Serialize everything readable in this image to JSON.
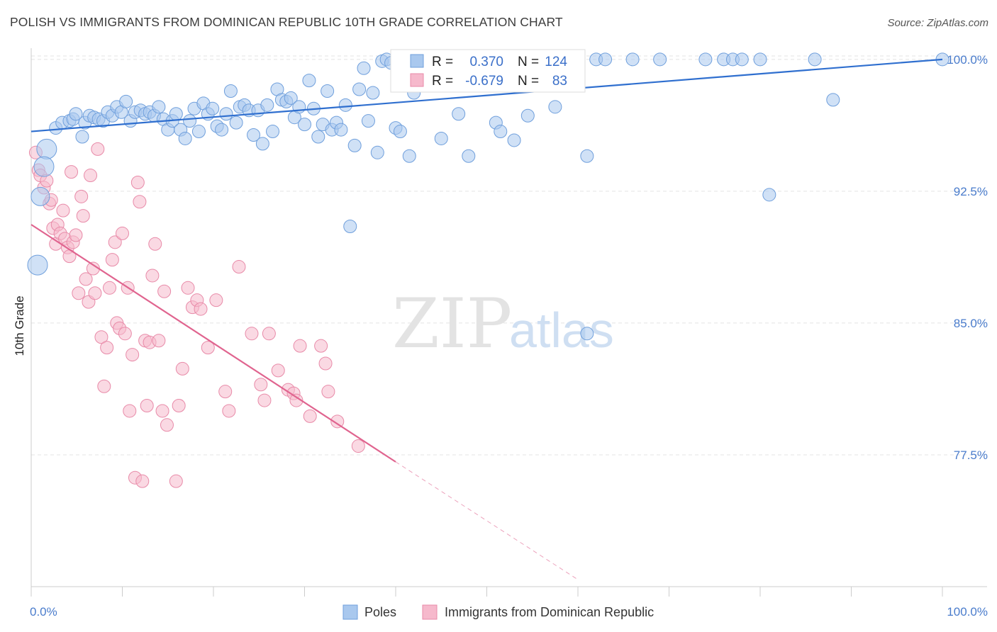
{
  "title": "POLISH VS IMMIGRANTS FROM DOMINICAN REPUBLIC 10TH GRADE CORRELATION CHART",
  "source": "Source: ZipAtlas.com",
  "watermark": {
    "part1": "ZIP",
    "part2": "atlas"
  },
  "stats_box": {
    "r_label": "R =",
    "n_label": "N =",
    "rows": [
      {
        "r": "0.370",
        "n": "124"
      },
      {
        "r": "-0.679",
        "n": "83"
      }
    ]
  },
  "colors": {
    "poles_fill": "#a9c8ee",
    "poles_stroke": "#6f9fdc",
    "poles_line": "#2f6fcf",
    "dom_fill": "#f6b9cc",
    "dom_stroke": "#e88aa8",
    "dom_line": "#e0648f",
    "grid": "#e3e3e3",
    "axis_text": "#4a7ccc"
  },
  "chart_data": {
    "type": "scatter",
    "ylabel": "10th Grade",
    "xlabel": "",
    "xlim": [
      0,
      100
    ],
    "ylim": [
      70.0,
      100.8
    ],
    "x_tick_labels": [
      "0.0%",
      "100.0%"
    ],
    "y_ticks": [
      77.5,
      85.0,
      92.5,
      100.0
    ],
    "y_tick_labels": [
      "77.5%",
      "85.0%",
      "92.5%",
      "100.0%"
    ],
    "grid": true,
    "legend_position": "bottom-center",
    "series": [
      {
        "name": "Poles",
        "r": 0.37,
        "n": 124,
        "trend": {
          "x": [
            0,
            100
          ],
          "y": [
            95.9,
            100.0
          ]
        },
        "points": [
          [
            0.7,
            88.3
          ],
          [
            1.7,
            94.9
          ],
          [
            1.0,
            92.2
          ],
          [
            1.4,
            93.9
          ],
          [
            2.7,
            96.1
          ],
          [
            3.4,
            96.4
          ],
          [
            4.2,
            96.5
          ],
          [
            4.6,
            96.6
          ],
          [
            4.9,
            96.9
          ],
          [
            5.6,
            95.6
          ],
          [
            5.9,
            96.4
          ],
          [
            6.4,
            96.8
          ],
          [
            6.9,
            96.7
          ],
          [
            7.4,
            96.6
          ],
          [
            7.9,
            96.5
          ],
          [
            8.4,
            97.0
          ],
          [
            8.9,
            96.8
          ],
          [
            9.4,
            97.3
          ],
          [
            9.9,
            97.0
          ],
          [
            10.4,
            97.6
          ],
          [
            10.9,
            96.5
          ],
          [
            11.4,
            97.0
          ],
          [
            12.0,
            97.1
          ],
          [
            12.5,
            96.9
          ],
          [
            13.0,
            97.0
          ],
          [
            13.5,
            96.8
          ],
          [
            14.0,
            97.3
          ],
          [
            14.5,
            96.6
          ],
          [
            15.0,
            96.0
          ],
          [
            15.5,
            96.5
          ],
          [
            15.9,
            96.9
          ],
          [
            16.4,
            96.0
          ],
          [
            16.9,
            95.5
          ],
          [
            17.4,
            96.5
          ],
          [
            17.9,
            97.2
          ],
          [
            18.4,
            95.9
          ],
          [
            18.9,
            97.5
          ],
          [
            19.4,
            96.9
          ],
          [
            19.9,
            97.2
          ],
          [
            20.4,
            96.2
          ],
          [
            20.9,
            96.0
          ],
          [
            21.4,
            96.9
          ],
          [
            21.9,
            98.2
          ],
          [
            22.5,
            96.4
          ],
          [
            22.9,
            97.3
          ],
          [
            23.4,
            97.4
          ],
          [
            23.9,
            97.1
          ],
          [
            24.4,
            95.7
          ],
          [
            24.9,
            97.1
          ],
          [
            25.4,
            95.2
          ],
          [
            25.9,
            97.4
          ],
          [
            26.5,
            95.9
          ],
          [
            27.0,
            98.3
          ],
          [
            27.5,
            97.7
          ],
          [
            28.0,
            97.6
          ],
          [
            28.5,
            97.8
          ],
          [
            28.9,
            96.7
          ],
          [
            29.4,
            97.3
          ],
          [
            30.0,
            96.3
          ],
          [
            30.5,
            98.8
          ],
          [
            31.0,
            97.2
          ],
          [
            31.5,
            95.6
          ],
          [
            32.0,
            96.3
          ],
          [
            32.5,
            98.2
          ],
          [
            33.0,
            96.0
          ],
          [
            33.5,
            96.4
          ],
          [
            34.0,
            96.0
          ],
          [
            34.5,
            97.4
          ],
          [
            35.5,
            95.1
          ],
          [
            36.0,
            98.3
          ],
          [
            36.5,
            99.5
          ],
          [
            37.0,
            96.5
          ],
          [
            37.5,
            98.1
          ],
          [
            38.0,
            94.7
          ],
          [
            38.5,
            99.9
          ],
          [
            39.0,
            100.0
          ],
          [
            39.5,
            99.8
          ],
          [
            40.0,
            96.1
          ],
          [
            40.5,
            95.9
          ],
          [
            41.0,
            99.9
          ],
          [
            41.5,
            94.5
          ],
          [
            42.0,
            98.1
          ],
          [
            43.0,
            100.0
          ],
          [
            44.0,
            100.0
          ],
          [
            45.0,
            95.5
          ],
          [
            46.0,
            100.0
          ],
          [
            46.9,
            96.9
          ],
          [
            47.5,
            100.0
          ],
          [
            48.0,
            94.5
          ],
          [
            49.0,
            100.0
          ],
          [
            50.0,
            100.0
          ],
          [
            51.0,
            96.4
          ],
          [
            51.5,
            95.9
          ],
          [
            52.0,
            100.0
          ],
          [
            53.0,
            95.4
          ],
          [
            54.0,
            100.0
          ],
          [
            54.5,
            96.8
          ],
          [
            55.0,
            100.0
          ],
          [
            56.0,
            100.0
          ],
          [
            57.0,
            100.0
          ],
          [
            57.5,
            97.3
          ],
          [
            59.0,
            100.0
          ],
          [
            61.0,
            94.5
          ],
          [
            62.0,
            100.0
          ],
          [
            63.0,
            100.0
          ],
          [
            66.0,
            100.0
          ],
          [
            69.0,
            100.0
          ],
          [
            74.0,
            100.0
          ],
          [
            76.0,
            100.0
          ],
          [
            77.0,
            100.0
          ],
          [
            78.0,
            100.0
          ],
          [
            80.0,
            100.0
          ],
          [
            81.0,
            92.3
          ],
          [
            86.0,
            100.0
          ],
          [
            88.0,
            97.7
          ],
          [
            100.0,
            100.0
          ],
          [
            61.0,
            84.4
          ],
          [
            35.0,
            90.5
          ]
        ],
        "point_sizes": [
          [
            0.7,
            88.3,
            14
          ],
          [
            1.7,
            94.9,
            14
          ],
          [
            1.4,
            93.9,
            14
          ],
          [
            1.0,
            92.2,
            13
          ]
        ]
      },
      {
        "name": "Immigrants from Dominican Republic",
        "r": -0.679,
        "n": 83,
        "trend": {
          "x": [
            0,
            40
          ],
          "y": [
            90.6,
            77.1
          ]
        },
        "trend_dashed": {
          "x": [
            40,
            60
          ],
          "y": [
            77.1,
            70.4
          ]
        },
        "points": [
          [
            0.5,
            94.7
          ],
          [
            0.8,
            93.7
          ],
          [
            1.0,
            93.4
          ],
          [
            1.4,
            92.7
          ],
          [
            1.7,
            93.1
          ],
          [
            2.0,
            91.8
          ],
          [
            2.2,
            92.0
          ],
          [
            2.4,
            90.4
          ],
          [
            2.7,
            89.5
          ],
          [
            2.9,
            90.6
          ],
          [
            3.2,
            90.1
          ],
          [
            3.5,
            91.4
          ],
          [
            3.7,
            89.8
          ],
          [
            4.0,
            89.3
          ],
          [
            4.2,
            88.8
          ],
          [
            4.4,
            93.6
          ],
          [
            4.6,
            89.6
          ],
          [
            4.9,
            90.0
          ],
          [
            5.2,
            86.7
          ],
          [
            5.5,
            92.2
          ],
          [
            5.7,
            91.1
          ],
          [
            6.0,
            87.5
          ],
          [
            6.3,
            86.2
          ],
          [
            6.5,
            93.4
          ],
          [
            6.8,
            88.1
          ],
          [
            7.0,
            86.7
          ],
          [
            7.3,
            94.9
          ],
          [
            7.7,
            84.2
          ],
          [
            8.0,
            81.4
          ],
          [
            8.3,
            83.6
          ],
          [
            8.6,
            87.0
          ],
          [
            8.9,
            88.6
          ],
          [
            9.2,
            89.6
          ],
          [
            9.4,
            85.0
          ],
          [
            9.7,
            84.7
          ],
          [
            10.0,
            90.1
          ],
          [
            10.3,
            84.4
          ],
          [
            10.6,
            87.0
          ],
          [
            10.8,
            80.0
          ],
          [
            11.1,
            83.2
          ],
          [
            11.4,
            76.2
          ],
          [
            11.7,
            93.0
          ],
          [
            11.9,
            91.9
          ],
          [
            12.2,
            76.0
          ],
          [
            12.5,
            84.0
          ],
          [
            12.7,
            80.3
          ],
          [
            13.0,
            83.9
          ],
          [
            13.3,
            87.7
          ],
          [
            13.6,
            89.5
          ],
          [
            14.0,
            84.0
          ],
          [
            14.4,
            80.0
          ],
          [
            14.6,
            86.8
          ],
          [
            14.9,
            79.2
          ],
          [
            15.9,
            76.0
          ],
          [
            16.2,
            80.3
          ],
          [
            16.6,
            82.4
          ],
          [
            17.2,
            87.0
          ],
          [
            17.7,
            85.9
          ],
          [
            18.2,
            86.3
          ],
          [
            18.6,
            85.8
          ],
          [
            19.4,
            83.6
          ],
          [
            20.3,
            86.3
          ],
          [
            21.3,
            81.1
          ],
          [
            21.7,
            80.0
          ],
          [
            22.8,
            88.2
          ],
          [
            24.2,
            84.4
          ],
          [
            25.2,
            81.5
          ],
          [
            25.6,
            80.6
          ],
          [
            26.1,
            84.4
          ],
          [
            27.1,
            82.3
          ],
          [
            28.2,
            81.2
          ],
          [
            28.8,
            81.0
          ],
          [
            29.1,
            80.6
          ],
          [
            29.5,
            83.7
          ],
          [
            30.6,
            79.7
          ],
          [
            31.8,
            83.7
          ],
          [
            32.3,
            82.7
          ],
          [
            32.6,
            81.1
          ],
          [
            33.6,
            79.4
          ],
          [
            35.9,
            78.0
          ]
        ]
      }
    ]
  }
}
